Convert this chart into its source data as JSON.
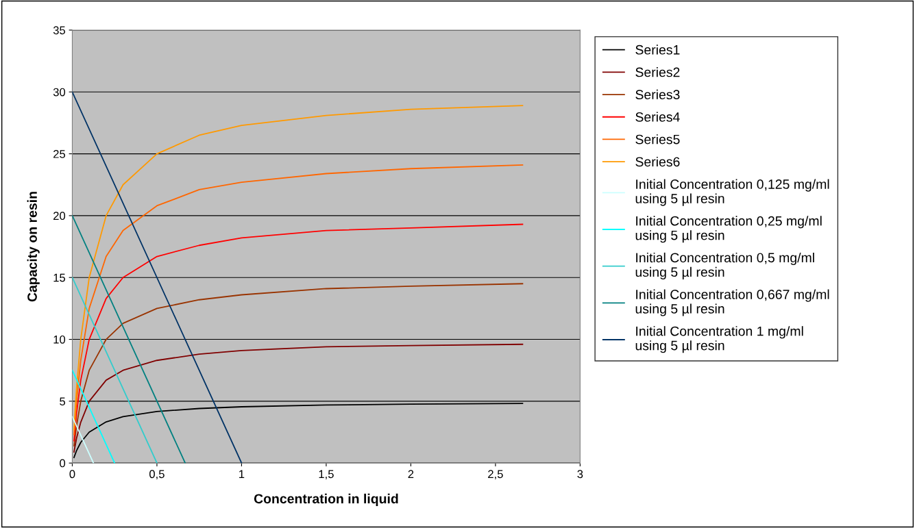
{
  "chart_data": {
    "type": "line",
    "xlabel": "Concentration in liquid",
    "ylabel": "Capacity on resin",
    "xlim": [
      0,
      3
    ],
    "xticks": [
      0,
      {
        "value": 0.5,
        "label": "0,5"
      },
      1,
      {
        "value": 1.5,
        "label": "1,5"
      },
      2,
      {
        "value": 2.5,
        "label": "2,5"
      },
      3
    ],
    "ylim": [
      0,
      35
    ],
    "yticks": [
      0,
      5,
      10,
      15,
      20,
      25,
      30,
      35
    ],
    "grid": "y",
    "legend": "right",
    "marker": "none",
    "line_style": "solid",
    "series": [
      {
        "name": "Series1",
        "color": "#000000",
        "x": [
          0.01,
          0.025,
          0.05,
          0.1,
          0.2,
          0.3,
          0.5,
          0.75,
          1,
          1.5,
          2,
          2.66
        ],
        "values": [
          0.45,
          1.0,
          1.67,
          2.5,
          3.33,
          3.75,
          4.17,
          4.41,
          4.55,
          4.69,
          4.76,
          4.82
        ]
      },
      {
        "name": "Series2",
        "color": "#800000",
        "x": [
          0.01,
          0.025,
          0.05,
          0.1,
          0.2,
          0.3,
          0.5,
          0.75,
          1,
          1.5,
          2,
          2.66
        ],
        "values": [
          0.9,
          2.0,
          3.3,
          5.0,
          6.7,
          7.5,
          8.3,
          8.8,
          9.1,
          9.4,
          9.5,
          9.6
        ]
      },
      {
        "name": "Series3",
        "color": "#993300",
        "x": [
          0.01,
          0.025,
          0.05,
          0.1,
          0.2,
          0.3,
          0.5,
          0.75,
          1,
          1.5,
          2,
          2.66
        ],
        "values": [
          1.4,
          3.0,
          5.0,
          7.5,
          10.0,
          11.3,
          12.5,
          13.2,
          13.6,
          14.1,
          14.3,
          14.5
        ]
      },
      {
        "name": "Series4",
        "color": "#ff0000",
        "x": [
          0.01,
          0.025,
          0.05,
          0.1,
          0.2,
          0.3,
          0.5,
          0.75,
          1,
          1.5,
          2,
          2.66
        ],
        "values": [
          1.8,
          4.0,
          6.7,
          10.0,
          13.3,
          15.0,
          16.7,
          17.6,
          18.2,
          18.8,
          19.0,
          19.3
        ]
      },
      {
        "name": "Series5",
        "color": "#ff6600",
        "x": [
          0.01,
          0.025,
          0.05,
          0.1,
          0.2,
          0.3,
          0.5,
          0.75,
          1,
          1.5,
          2,
          2.66
        ],
        "values": [
          2.3,
          5.0,
          8.3,
          12.5,
          16.7,
          18.8,
          20.8,
          22.1,
          22.7,
          23.4,
          23.8,
          24.1
        ]
      },
      {
        "name": "Series6",
        "color": "#ff9900",
        "x": [
          0.01,
          0.025,
          0.05,
          0.1,
          0.2,
          0.3,
          0.5,
          0.75,
          1,
          1.5,
          2,
          2.66
        ],
        "values": [
          2.7,
          6.0,
          10.0,
          15.0,
          20.0,
          22.5,
          25.0,
          26.5,
          27.3,
          28.1,
          28.6,
          28.9
        ]
      },
      {
        "name": "Initial Concentration 0,125 mg/ml using 5 µl resin",
        "color": "#ccffff",
        "x": [
          0,
          0.125
        ],
        "values": [
          3.75,
          0
        ]
      },
      {
        "name": "Initial Concentration 0,25 mg/ml using 5 µl resin",
        "color": "#00ffff",
        "x": [
          0,
          0.25
        ],
        "values": [
          7.5,
          0
        ]
      },
      {
        "name": "Initial Concentration 0,5 mg/ml using 5 µl resin",
        "color": "#33cccc",
        "x": [
          0,
          0.5
        ],
        "values": [
          15,
          0
        ]
      },
      {
        "name": "Initial Concentration 0,667 mg/ml using 5 µl resin",
        "color": "#008080",
        "x": [
          0,
          0.667
        ],
        "values": [
          20,
          0
        ]
      },
      {
        "name": "Initial Concentration 1 mg/ml using 5 µl resin",
        "color": "#003366",
        "x": [
          0,
          1
        ],
        "values": [
          30,
          0
        ]
      }
    ]
  }
}
